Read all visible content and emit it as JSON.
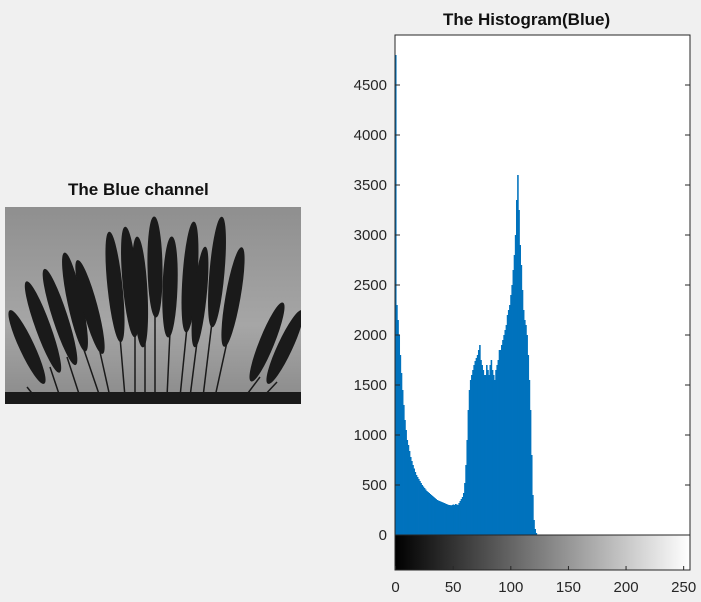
{
  "left_panel": {
    "title": "The Blue channel",
    "image": "grayscale photograph of pampas grass plumes against a pale sky"
  },
  "chart_data": {
    "type": "bar",
    "title": "The Histogram(Blue)",
    "xlabel": "",
    "ylabel": "",
    "xlim": [
      0,
      255
    ],
    "ylim": [
      0,
      5000
    ],
    "x_ticks": [
      0,
      50,
      100,
      150,
      200,
      250
    ],
    "y_ticks": [
      0,
      500,
      1000,
      1500,
      2000,
      2500,
      3000,
      3500,
      4000,
      4500
    ],
    "bar_color": "#0072bd",
    "colorbar": "grayscale gradient from black (0) to white (255)",
    "grid": false,
    "series": [
      {
        "x_start": 0,
        "bin_width": 1,
        "values": [
          4800,
          2300,
          2150,
          2000,
          1800,
          1620,
          1450,
          1300,
          1150,
          1050,
          950,
          900,
          840,
          780,
          740,
          700,
          665,
          630,
          600,
          580,
          560,
          540,
          520,
          500,
          485,
          470,
          455,
          440,
          430,
          420,
          410,
          400,
          390,
          380,
          370,
          360,
          350,
          345,
          340,
          335,
          330,
          325,
          320,
          315,
          310,
          305,
          300,
          300,
          295,
          300,
          305,
          300,
          310,
          305,
          300,
          320,
          340,
          360,
          380,
          420,
          520,
          700,
          950,
          1250,
          1450,
          1550,
          1600,
          1650,
          1700,
          1740,
          1770,
          1800,
          1850,
          1900,
          1750,
          1700,
          1650,
          1600,
          1600,
          1700,
          1650,
          1600,
          1700,
          1750,
          1650,
          1600,
          1550,
          1650,
          1700,
          1750,
          1850,
          1850,
          1900,
          1950,
          2000,
          2050,
          2100,
          2200,
          2250,
          2300,
          2400,
          2500,
          2650,
          2800,
          3000,
          3350,
          3600,
          3250,
          2900,
          2700,
          2450,
          2250,
          2150,
          2100,
          2000,
          1800,
          1550,
          1250,
          800,
          400,
          150,
          60,
          20,
          5,
          0,
          0,
          0,
          0,
          0,
          0,
          0,
          0,
          0,
          0,
          0,
          0,
          0,
          0,
          0,
          0,
          0,
          0,
          0,
          0,
          0,
          0,
          0,
          0,
          0,
          0,
          0,
          0,
          0,
          0,
          0,
          0,
          0,
          0,
          0,
          0,
          0,
          0,
          0,
          0,
          0,
          0,
          0,
          0,
          0,
          0,
          0,
          0,
          0,
          0,
          0,
          0,
          0,
          0,
          0,
          0,
          0,
          0,
          0,
          0,
          0,
          0,
          0,
          0,
          0,
          0,
          0,
          0,
          0,
          0,
          0,
          0,
          0,
          0,
          0,
          0,
          0,
          0,
          0,
          0,
          0,
          0,
          0,
          0,
          0,
          0,
          0,
          0,
          0,
          0,
          0,
          0,
          0,
          0,
          0,
          0,
          0,
          0,
          0,
          0,
          0,
          0,
          0,
          0,
          0,
          0,
          0,
          0,
          0,
          0,
          0,
          0,
          0,
          0,
          0,
          0,
          0,
          0,
          0,
          0,
          0,
          0,
          0,
          0,
          0,
          0,
          0,
          0,
          0,
          0,
          0,
          0,
          0,
          0,
          0,
          0,
          0,
          0,
          0,
          0,
          0,
          0,
          0,
          0,
          0,
          0,
          0,
          0,
          0,
          0,
          0,
          0,
          0,
          0,
          0,
          0,
          0,
          0,
          0,
          0,
          0,
          0
        ]
      }
    ]
  }
}
